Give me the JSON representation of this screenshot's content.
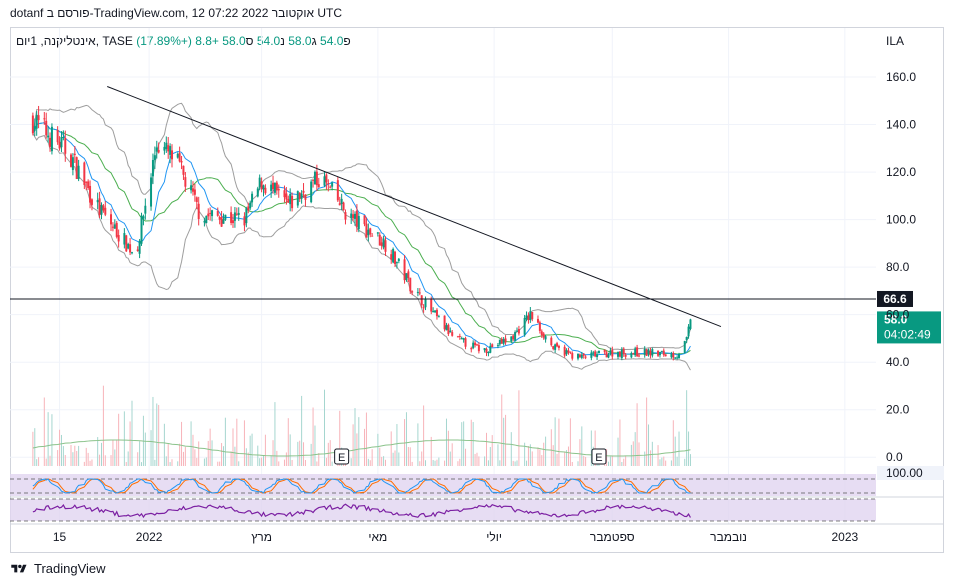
{
  "header": {
    "title": "dotanf פורסם ב-TradingView.com, 12 אוקטובר 2022 07:22 UTC"
  },
  "legend": {
    "symbol": "אינטליקנה, 1יום, TASE",
    "open_label": "פ",
    "open": "54.0",
    "high_label": "ג",
    "high": "58.0",
    "low_label": "נ",
    "low": "54.0",
    "close_label": "ס",
    "close": "58.0",
    "change": "+8.8 (+17.89%)"
  },
  "currency": "ILA",
  "footer": {
    "brand": "TradingView"
  },
  "colors": {
    "up": "#089981",
    "down": "#f23645",
    "ma_fast": "#2196f3",
    "ma_slow": "#4caf50",
    "band": "#9e9e9e",
    "osc_fill": "#e1d5f0",
    "rsi": "#7b1fa2",
    "stoch_k": "#2196f3",
    "stoch_d": "#ff6d00"
  },
  "chart_data": {
    "type": "candlestick",
    "y_ticks": [
      "160.0",
      "140.0",
      "120.0",
      "100.0",
      "80.0",
      "60.0",
      "40.0",
      "20.0",
      "0.0"
    ],
    "y_range": [
      -2,
      168
    ],
    "x_ticks": [
      "15",
      "2022",
      "מרץ",
      "מאי",
      "יולי",
      "ספטמבר",
      "נובמבר",
      "2023"
    ],
    "horizontal_line": {
      "value": 66.6,
      "label": "66.6"
    },
    "last_price": {
      "value": 58.0,
      "label": "58.0",
      "countdown": "04:02:49"
    },
    "trendline": {
      "from": {
        "x": "2021-12-10",
        "y": 156
      },
      "to": {
        "x": "2022-10-28",
        "y": 55
      }
    },
    "earnings_markers": [
      "E",
      "E"
    ],
    "stoch_level_label": "100.00",
    "close_keypoints": [
      [
        "2021-11-01",
        142
      ],
      [
        "2021-11-20",
        128
      ],
      [
        "2021-12-05",
        105
      ],
      [
        "2021-12-25",
        85
      ],
      [
        "2022-01-05",
        132
      ],
      [
        "2022-01-15",
        125
      ],
      [
        "2022-01-28",
        102
      ],
      [
        "2022-02-20",
        100
      ],
      [
        "2022-03-01",
        116
      ],
      [
        "2022-03-15",
        106
      ],
      [
        "2022-04-01",
        118
      ],
      [
        "2022-04-15",
        102
      ],
      [
        "2022-05-05",
        90
      ],
      [
        "2022-05-20",
        70
      ],
      [
        "2022-06-10",
        50
      ],
      [
        "2022-06-25",
        45
      ],
      [
        "2022-07-10",
        50
      ],
      [
        "2022-07-20",
        60
      ],
      [
        "2022-08-01",
        46
      ],
      [
        "2022-08-15",
        42
      ],
      [
        "2022-09-01",
        44
      ],
      [
        "2022-09-20",
        44
      ],
      [
        "2022-10-05",
        43
      ],
      [
        "2022-10-10",
        49
      ],
      [
        "2022-10-12",
        58
      ]
    ]
  }
}
